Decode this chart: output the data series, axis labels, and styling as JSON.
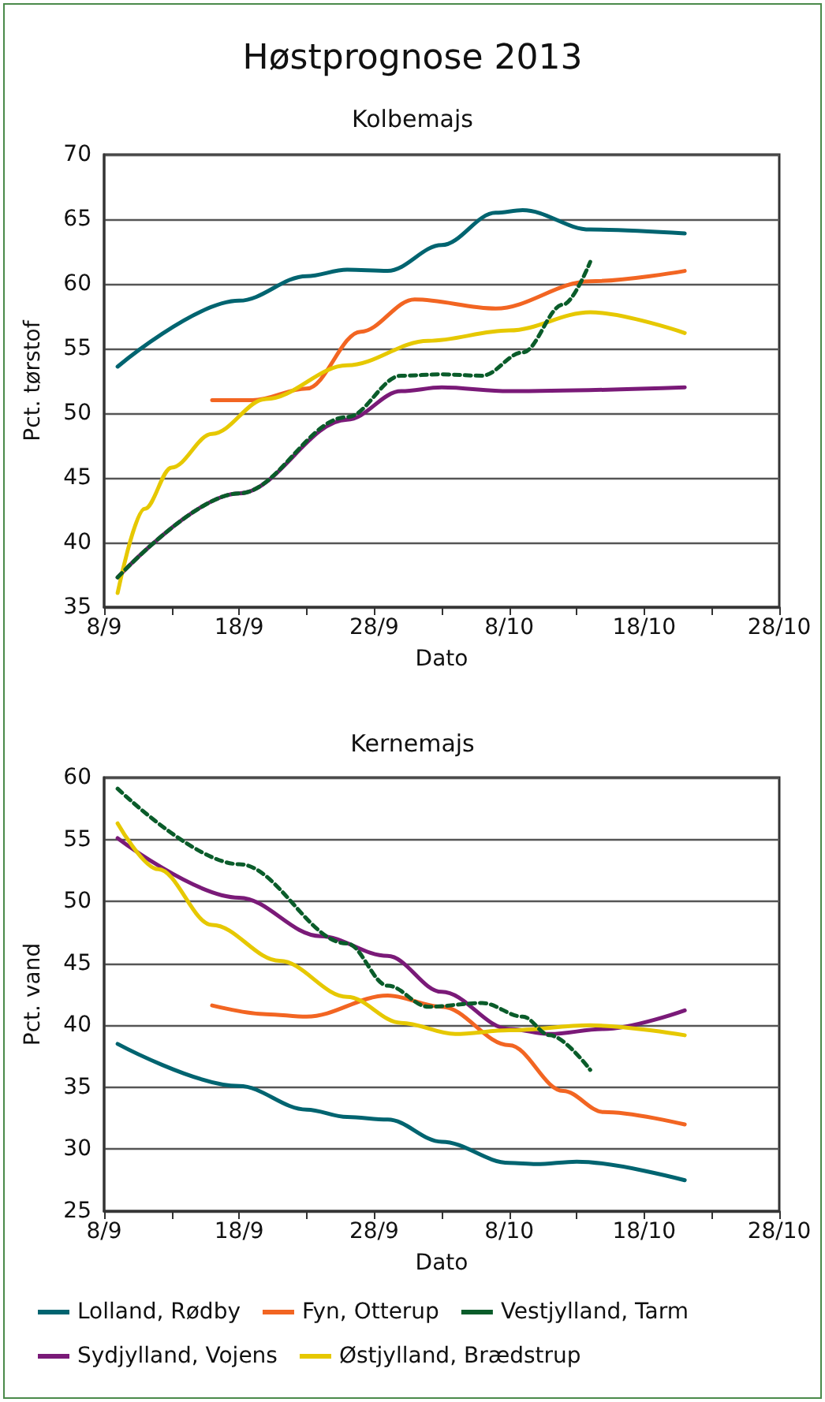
{
  "chart_data": [
    {
      "type": "line",
      "title": "Høstprognose 2013",
      "subtitle": "Kolbemajs",
      "xlabel": "Dato",
      "ylabel": "Pct. tørstof",
      "grid": "y",
      "marker": "none",
      "xlim": [
        "--09-08",
        "--10-28"
      ],
      "ylim": [
        35,
        70
      ],
      "yticks": [
        35,
        40,
        45,
        50,
        55,
        60,
        65,
        70
      ],
      "xticks": [
        {
          "value": "--09-08",
          "label": "8/9"
        },
        {
          "value": "--09-13",
          "label": null
        },
        {
          "value": "--09-18",
          "label": "18/9"
        },
        {
          "value": "--09-23",
          "label": null
        },
        {
          "value": "--09-28",
          "label": "28/9"
        },
        {
          "value": "--10-03",
          "label": null
        },
        {
          "value": "--10-08",
          "label": "8/10"
        },
        {
          "value": "--10-13",
          "label": null
        },
        {
          "value": "--10-18",
          "label": "18/10"
        },
        {
          "value": "--10-23",
          "label": null
        },
        {
          "value": "--10-28",
          "label": "28/10"
        }
      ],
      "series": [
        {
          "color": "#006470",
          "x": [
            "--09-09",
            "--09-18",
            "--09-23",
            "--09-26",
            "--09-29",
            "--10-03",
            "--10-07",
            "--10-09",
            "--10-14",
            "--10-21"
          ],
          "values": [
            53.6,
            58.7,
            60.6,
            61.1,
            61.0,
            63.0,
            65.5,
            65.7,
            64.2,
            63.9
          ]
        },
        {
          "color": "#f26522",
          "x": [
            "--09-16",
            "--09-19",
            "--09-23",
            "--09-27",
            "--10-01",
            "--10-07",
            "--10-14",
            "--10-21"
          ],
          "values": [
            51.0,
            51.0,
            51.9,
            56.3,
            58.8,
            58.1,
            60.2,
            61.0
          ]
        },
        {
          "color": "#0a5c2a",
          "line_style": "dashed",
          "x": [
            "--09-09",
            "--09-18",
            "--09-26",
            "--09-30",
            "--10-03",
            "--10-06",
            "--10-09",
            "--10-12",
            "--10-14"
          ],
          "values": [
            37.3,
            43.8,
            49.7,
            52.9,
            53.0,
            52.9,
            54.7,
            58.4,
            61.7
          ]
        },
        {
          "color": "#7a1a78",
          "x": [
            "--09-09",
            "--09-18",
            "--09-26",
            "--09-30",
            "--10-03",
            "--10-08",
            "--10-21"
          ],
          "values": [
            37.3,
            43.8,
            49.5,
            51.7,
            52.0,
            51.7,
            52.0
          ]
        },
        {
          "color": "#e6c800",
          "x": [
            "--09-09",
            "--09-11",
            "--09-13",
            "--09-16",
            "--09-20",
            "--09-26",
            "--10-02",
            "--10-08",
            "--10-14",
            "--10-21"
          ],
          "values": [
            36.1,
            42.6,
            45.8,
            48.4,
            51.1,
            53.7,
            55.6,
            56.4,
            57.8,
            56.2
          ]
        }
      ]
    },
    {
      "type": "line",
      "title": "Kernemajs",
      "xlabel": "Dato",
      "ylabel": "Pct. vand",
      "grid": "y",
      "marker": "none",
      "legend": "bottom",
      "xlim": [
        "--09-08",
        "--10-28"
      ],
      "ylim": [
        25,
        60
      ],
      "yticks": [
        25,
        30,
        35,
        40,
        45,
        50,
        55,
        60
      ],
      "xticks": [
        {
          "value": "--09-08",
          "label": "8/9"
        },
        {
          "value": "--09-13",
          "label": null
        },
        {
          "value": "--09-18",
          "label": "18/9"
        },
        {
          "value": "--09-23",
          "label": null
        },
        {
          "value": "--09-28",
          "label": "28/9"
        },
        {
          "value": "--10-03",
          "label": null
        },
        {
          "value": "--10-08",
          "label": "8/10"
        },
        {
          "value": "--10-13",
          "label": null
        },
        {
          "value": "--10-18",
          "label": "18/10"
        },
        {
          "value": "--10-23",
          "label": null
        },
        {
          "value": "--10-28",
          "label": "28/10"
        }
      ],
      "series": [
        {
          "name": "Lolland, Rødby",
          "color": "#006470",
          "x": [
            "--09-09",
            "--09-18",
            "--09-23",
            "--09-26",
            "--09-29",
            "--10-03",
            "--10-08",
            "--10-10",
            "--10-13",
            "--10-21"
          ],
          "values": [
            38.5,
            35.1,
            33.2,
            32.6,
            32.4,
            30.6,
            28.9,
            28.8,
            29.0,
            27.5
          ]
        },
        {
          "name": "Fyn, Otterup",
          "color": "#f26522",
          "x": [
            "--09-16",
            "--09-20",
            "--09-23",
            "--09-29",
            "--10-03",
            "--10-08",
            "--10-12",
            "--10-15",
            "--10-21"
          ],
          "values": [
            41.6,
            40.9,
            40.7,
            42.4,
            41.5,
            38.4,
            34.7,
            33.0,
            32.0
          ]
        },
        {
          "name": "Vestjylland, Tarm",
          "color": "#0a5c2a",
          "line_style": "dashed",
          "x": [
            "--09-09",
            "--09-18",
            "--09-26",
            "--09-29",
            "--10-02",
            "--10-06",
            "--10-09",
            "--10-11",
            "--10-14"
          ],
          "values": [
            59.1,
            53.0,
            46.6,
            43.2,
            41.5,
            41.8,
            40.7,
            39.2,
            36.4
          ]
        },
        {
          "name": "Sydjylland, Vojens",
          "color": "#7a1a78",
          "x": [
            "--09-09",
            "--09-18",
            "--09-24",
            "--09-29",
            "--10-03",
            "--10-08",
            "--10-11",
            "--10-15",
            "--10-21"
          ],
          "values": [
            55.1,
            50.3,
            47.2,
            45.6,
            42.7,
            39.7,
            39.3,
            39.7,
            41.2
          ]
        },
        {
          "name": "Østjylland, Brædstrup",
          "color": "#e6c800",
          "x": [
            "--09-09",
            "--09-12",
            "--09-16",
            "--09-21",
            "--09-26",
            "--09-30",
            "--10-04",
            "--10-08",
            "--10-14",
            "--10-21"
          ],
          "values": [
            56.3,
            52.6,
            48.1,
            45.2,
            42.3,
            40.2,
            39.3,
            39.6,
            40.0,
            39.2
          ]
        }
      ]
    }
  ]
}
